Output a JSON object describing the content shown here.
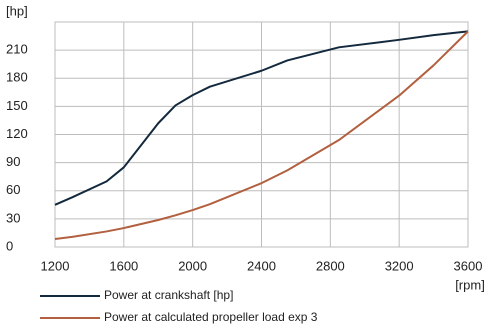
{
  "chart_data": {
    "type": "line",
    "y_label": "[hp]",
    "x_label": "[rpm]",
    "x": [
      1200,
      1300,
      1500,
      1600,
      1800,
      1900,
      2000,
      2100,
      2400,
      2550,
      2850,
      3200,
      3400,
      3600
    ],
    "series": [
      {
        "name": "Power at crankshaft [hp]",
        "color": "#13293d",
        "values": [
          45,
          53,
          70,
          85,
          132,
          151,
          162,
          171,
          188,
          199,
          213,
          221,
          226,
          230
        ]
      },
      {
        "name": "Power at calculated propeller load exp 3",
        "color": "#b2603f",
        "values": [
          8.5,
          10.8,
          16.6,
          20.2,
          28.8,
          33.8,
          39.4,
          45.7,
          68.1,
          81.7,
          114.1,
          161.5,
          193.8,
          230
        ]
      }
    ],
    "xlim": [
      1200,
      3600
    ],
    "xticks": [
      1200,
      1600,
      2000,
      2400,
      2800,
      3200,
      3600
    ],
    "ylim": [
      0,
      240
    ],
    "yticks": [
      0,
      30,
      60,
      90,
      120,
      150,
      180,
      210
    ],
    "grid": true
  }
}
